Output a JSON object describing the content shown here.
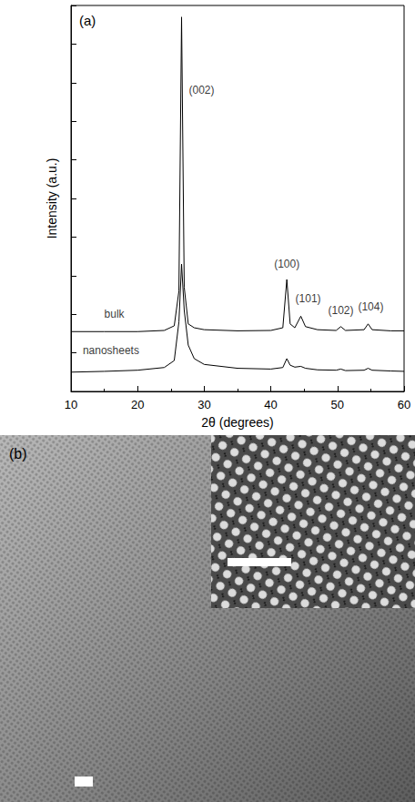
{
  "chart_data": {
    "type": "line",
    "title": "(a)",
    "x_label": "2θ (degrees)",
    "y_label": "Intensity (a.u.)",
    "x": [
      10,
      15,
      20,
      24,
      25.5,
      26.2,
      26.6,
      27.0,
      27.6,
      28.5,
      30,
      35,
      40,
      41.8,
      42.4,
      42.9,
      43.6,
      44.5,
      45.2,
      47,
      49.8,
      50.5,
      51.2,
      54,
      54.6,
      55.2,
      58,
      60
    ],
    "series": [
      {
        "color": "#000000",
        "values": [
          1.55,
          1.55,
          1.55,
          1.58,
          1.7,
          2.6,
          9.7,
          2.7,
          1.75,
          1.65,
          1.6,
          1.57,
          1.58,
          1.65,
          2.9,
          1.75,
          1.65,
          1.95,
          1.68,
          1.6,
          1.58,
          1.68,
          1.58,
          1.6,
          1.75,
          1.6,
          1.57,
          1.57
        ]
      },
      {
        "color": "#000000",
        "values": [
          0.5,
          0.52,
          0.55,
          0.62,
          0.8,
          1.8,
          3.3,
          2.1,
          1.2,
          0.85,
          0.7,
          0.6,
          0.58,
          0.62,
          0.85,
          0.68,
          0.63,
          0.65,
          0.6,
          0.56,
          0.55,
          0.58,
          0.54,
          0.55,
          0.6,
          0.55,
          0.53,
          0.52
        ]
      }
    ],
    "annotations": [
      {
        "text": "(002)",
        "x": 29.6,
        "y": 7.8
      },
      {
        "text": "(100)",
        "x": 42.4,
        "y": 3.3
      },
      {
        "text": "(101)",
        "x": 45.6,
        "y": 2.4
      },
      {
        "text": "(102)",
        "x": 50.5,
        "y": 2.1
      },
      {
        "text": "(104)",
        "x": 55.0,
        "y": 2.2
      },
      {
        "text": "bulk",
        "x": 16.5,
        "y": 2.0
      },
      {
        "text": "nanosheets",
        "x": 16.0,
        "y": 1.05
      }
    ],
    "xlim": [
      10,
      60
    ],
    "xticks": [
      10,
      20,
      30,
      40,
      50,
      60
    ],
    "ylim": [
      0,
      10
    ],
    "yticks": [
      0,
      1,
      2,
      3,
      4,
      5,
      6,
      7,
      8,
      9,
      10
    ],
    "tick_labels": "x",
    "grid": false
  },
  "image": {
    "label": "(b)"
  }
}
